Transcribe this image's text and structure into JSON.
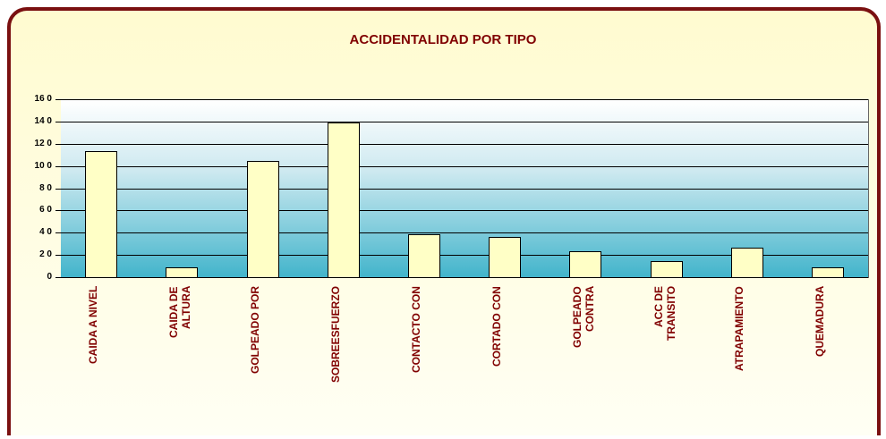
{
  "chart_data": {
    "type": "bar",
    "title": "ACCIDENTALIDAD POR TIPO",
    "categories": [
      "CAIDA A NIVEL",
      "CAIDA DE\nALTURA",
      "GOLPEADO POR",
      "SOBREESFUERZO",
      "CONTACTO CON",
      "CORTADO CON",
      "GOLPEADO\nCONTRA",
      "ACC DE\nTRANSITO",
      "ATRAPAMIENTO",
      "QUEMADURA"
    ],
    "values": [
      114,
      10,
      105,
      140,
      39,
      37,
      24,
      15,
      27,
      10
    ],
    "color": "#ffffc6",
    "ylim": [
      0,
      160
    ],
    "yticks": [
      0,
      {
        "value": 20,
        "label": "2 0"
      },
      {
        "value": 40,
        "label": "4 0"
      },
      {
        "value": 60,
        "label": "6 0"
      },
      {
        "value": 80,
        "label": "8 0"
      },
      {
        "value": 100,
        "label": "10 0"
      },
      {
        "value": 120,
        "label": "12 0"
      },
      {
        "value": 140,
        "label": "14 0"
      },
      {
        "value": 160,
        "label": "16 0"
      }
    ],
    "grid": true
  }
}
